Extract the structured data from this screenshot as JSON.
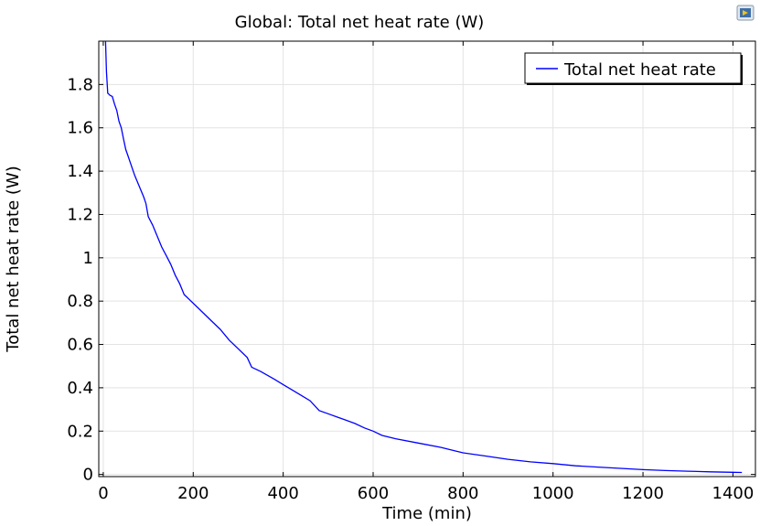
{
  "chart_data": {
    "type": "line",
    "title": "Global: Total net heat rate (W)",
    "xlabel": "Time (min)",
    "ylabel": "Total net heat rate (W)",
    "xlim": [
      -10,
      1450
    ],
    "ylim": [
      -0.01,
      2.0
    ],
    "xticks": [
      0,
      200,
      400,
      600,
      800,
      1000,
      1200,
      1400
    ],
    "yticks": [
      0,
      0.2,
      0.4,
      0.6,
      0.8,
      1,
      1.2,
      1.4,
      1.6,
      1.8
    ],
    "ytick_labels": [
      "0",
      "0.2",
      "0.4",
      "0.6",
      "0.8",
      "1",
      "1.2",
      "1.4",
      "1.6",
      "1.8"
    ],
    "grid": true,
    "legend_position": "top-right",
    "series": [
      {
        "name": "Total net heat rate",
        "color": "#0000ff",
        "x": [
          5,
          7,
          10,
          15,
          20,
          25,
          30,
          35,
          40,
          45,
          50,
          55,
          60,
          70,
          80,
          90,
          95,
          100,
          110,
          120,
          130,
          140,
          150,
          160,
          170,
          180,
          185,
          190,
          200,
          220,
          240,
          260,
          280,
          300,
          320,
          330,
          350,
          380,
          400,
          420,
          440,
          460,
          480,
          500,
          520,
          540,
          560,
          580,
          600,
          620,
          650,
          700,
          750,
          780,
          800,
          850,
          900,
          950,
          1000,
          1050,
          1100,
          1150,
          1200,
          1250,
          1300,
          1350,
          1400,
          1420
        ],
        "values": [
          2.0,
          1.86,
          1.76,
          1.75,
          1.745,
          1.71,
          1.68,
          1.63,
          1.6,
          1.55,
          1.5,
          1.47,
          1.44,
          1.38,
          1.33,
          1.28,
          1.25,
          1.19,
          1.15,
          1.1,
          1.05,
          1.01,
          0.97,
          0.92,
          0.88,
          0.83,
          0.82,
          0.81,
          0.79,
          0.75,
          0.71,
          0.67,
          0.62,
          0.58,
          0.54,
          0.495,
          0.475,
          0.44,
          0.415,
          0.39,
          0.365,
          0.34,
          0.295,
          0.28,
          0.265,
          0.25,
          0.235,
          0.215,
          0.2,
          0.18,
          0.165,
          0.145,
          0.125,
          0.11,
          0.1,
          0.085,
          0.07,
          0.058,
          0.05,
          0.04,
          0.034,
          0.028,
          0.022,
          0.018,
          0.015,
          0.012,
          0.01,
          0.009
        ]
      }
    ]
  },
  "toolbar": {
    "icon": "export-image-icon"
  }
}
